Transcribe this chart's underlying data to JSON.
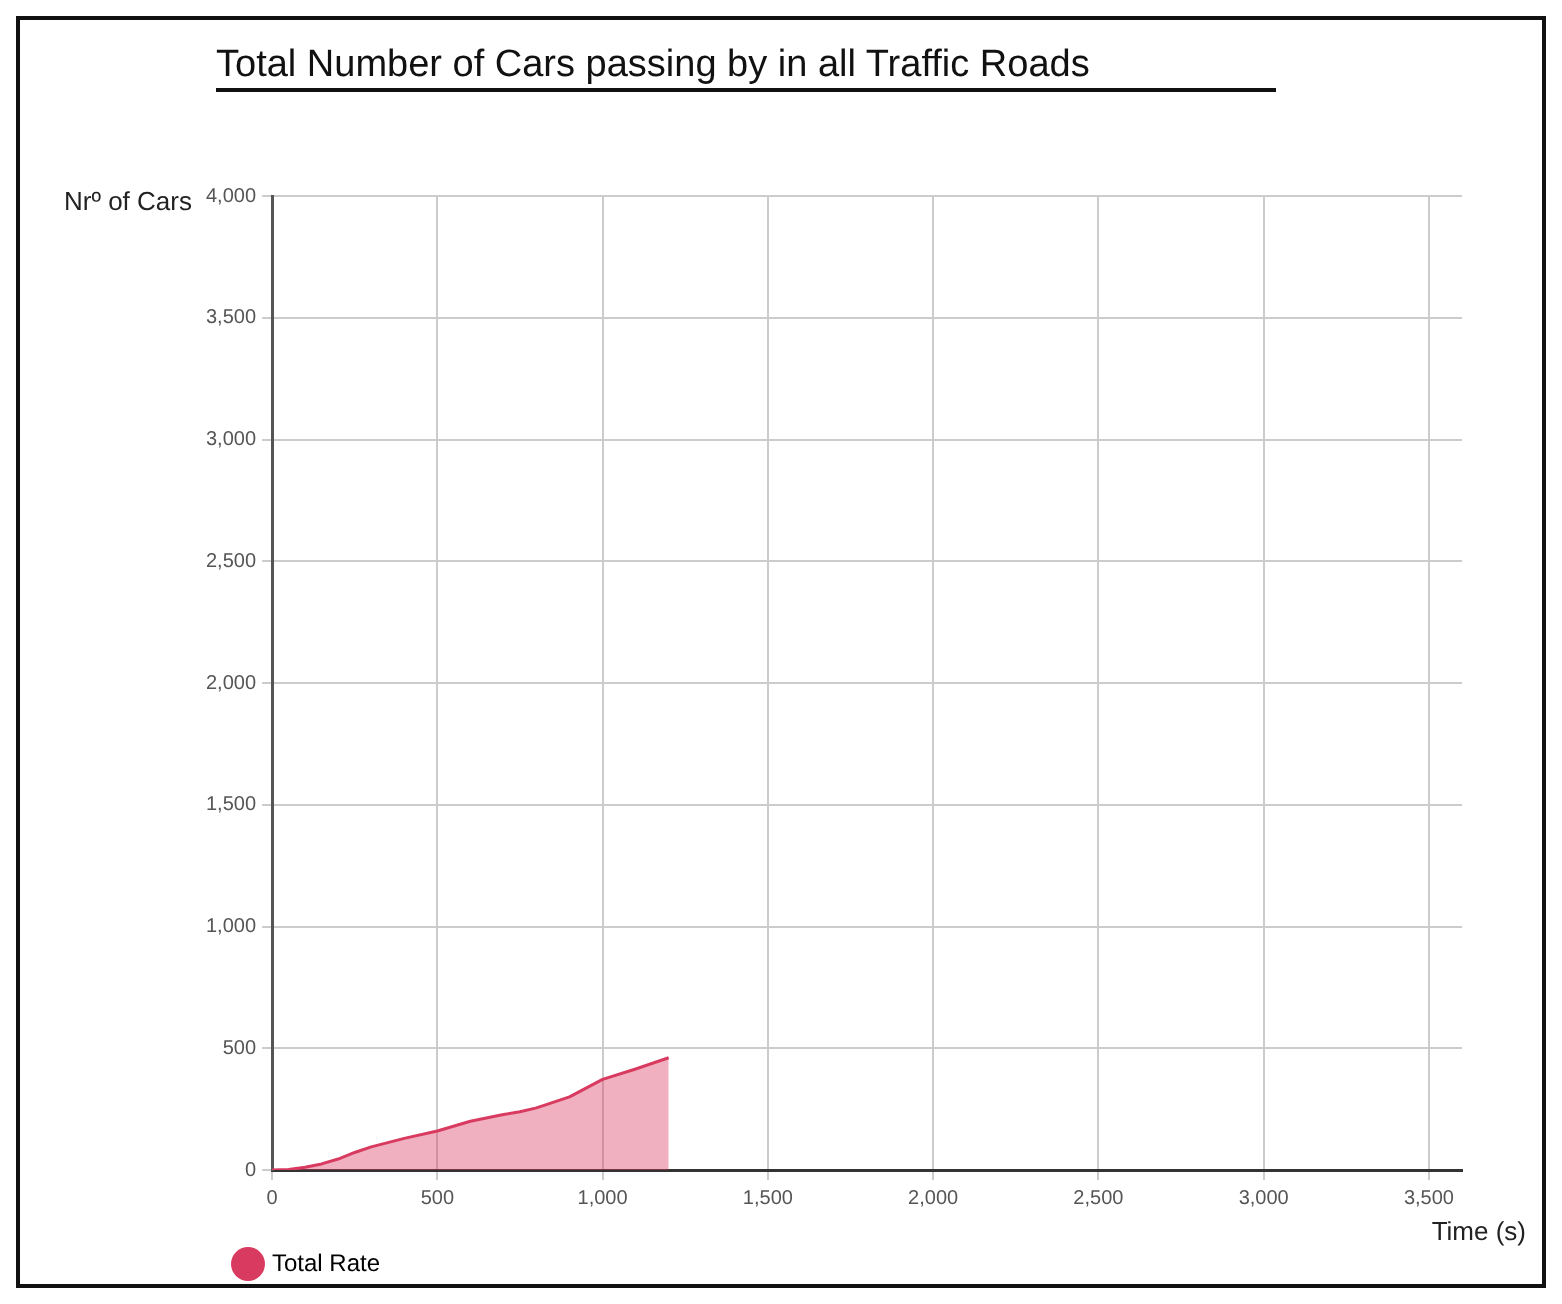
{
  "chart_data": {
    "type": "area",
    "title": "Total Number of Cars passing by in all Traffic Roads",
    "xlabel": "Time (s)",
    "ylabel": "Nrº of Cars",
    "x": [
      0,
      50,
      100,
      150,
      200,
      250,
      300,
      400,
      500,
      600,
      700,
      750,
      800,
      900,
      1000,
      1100,
      1200
    ],
    "series": [
      {
        "name": "Total Rate",
        "color": "#d93a60",
        "values": [
          0,
          2,
          11,
          25,
          45,
          72,
          95,
          130,
          160,
          200,
          228,
          239,
          255,
          300,
          372,
          415,
          461
        ]
      }
    ],
    "xlim": [
      0,
      3600
    ],
    "xticks": [
      {
        "value": 0,
        "label": "0"
      },
      {
        "value": 500,
        "label": "500"
      },
      {
        "value": 1000,
        "label": "1,000"
      },
      {
        "value": 1500,
        "label": "1,500"
      },
      {
        "value": 2000,
        "label": "2,000"
      },
      {
        "value": 2500,
        "label": "2,500"
      },
      {
        "value": 3000,
        "label": "3,000"
      },
      {
        "value": 3500,
        "label": "3,500"
      }
    ],
    "ylim": [
      0,
      4000
    ],
    "yticks": [
      {
        "value": 0,
        "label": "0"
      },
      {
        "value": 500,
        "label": "500"
      },
      {
        "value": 1000,
        "label": "1,000"
      },
      {
        "value": 1500,
        "label": "1,500"
      },
      {
        "value": 2000,
        "label": "2,000"
      },
      {
        "value": 2500,
        "label": "2,500"
      },
      {
        "value": 3000,
        "label": "3,000"
      },
      {
        "value": 3500,
        "label": "3,500"
      },
      {
        "value": 4000,
        "label": "4,000"
      }
    ],
    "grid": true,
    "legend": "bottom left",
    "marker": "none",
    "line_style": "solid"
  }
}
